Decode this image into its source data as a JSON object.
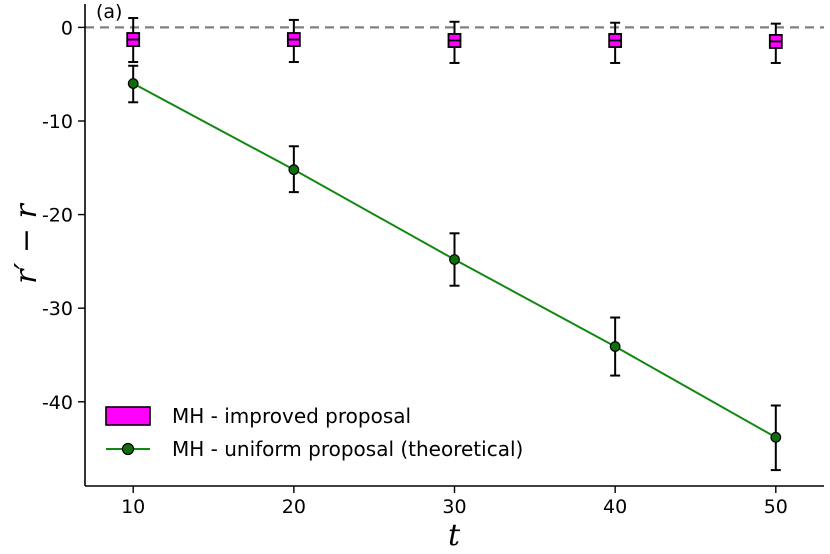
{
  "chart_data": {
    "type": "line",
    "panel_label": "(a)",
    "xlabel": "t",
    "ylabel": "r′ − r",
    "xlim": [
      7,
      53
    ],
    "ylim": [
      -49,
      2.5
    ],
    "x_ticks": [
      10,
      20,
      30,
      40,
      50
    ],
    "y_ticks": [
      0,
      -10,
      -20,
      -30,
      -40
    ],
    "y_tick_labels": [
      "0",
      "-10",
      "-20",
      "-30",
      "-40"
    ],
    "reference_line": {
      "y": 0,
      "style": "dashed",
      "color": "#808080"
    },
    "series": [
      {
        "name": "MH - improved proposal",
        "kind": "box",
        "color": "#ff00ff",
        "x": [
          10,
          20,
          30,
          40,
          50
        ],
        "median": [
          -1.3,
          -1.3,
          -1.4,
          -1.4,
          -1.5
        ],
        "q1": [
          -2.0,
          -2.0,
          -2.1,
          -2.1,
          -2.2
        ],
        "q3": [
          -0.6,
          -0.6,
          -0.7,
          -0.7,
          -0.8
        ],
        "whisker_low": [
          -3.7,
          -3.7,
          -3.8,
          -3.8,
          -3.8
        ],
        "whisker_high": [
          1.0,
          0.8,
          0.6,
          0.5,
          0.4
        ]
      },
      {
        "name": "MH - uniform proposal (theoretical)",
        "kind": "line-errorbar",
        "color": "#118811",
        "marker_color": "#0e6e0e",
        "x": [
          10,
          20,
          30,
          40,
          50
        ],
        "y": [
          -6.0,
          -15.2,
          -24.8,
          -34.1,
          -43.8
        ],
        "err_low": [
          -8.0,
          -17.6,
          -27.6,
          -37.2,
          -47.3
        ],
        "err_high": [
          -4.1,
          -12.7,
          -22.0,
          -31.0,
          -40.4
        ]
      }
    ],
    "legend": {
      "position": "bottom-left"
    }
  }
}
